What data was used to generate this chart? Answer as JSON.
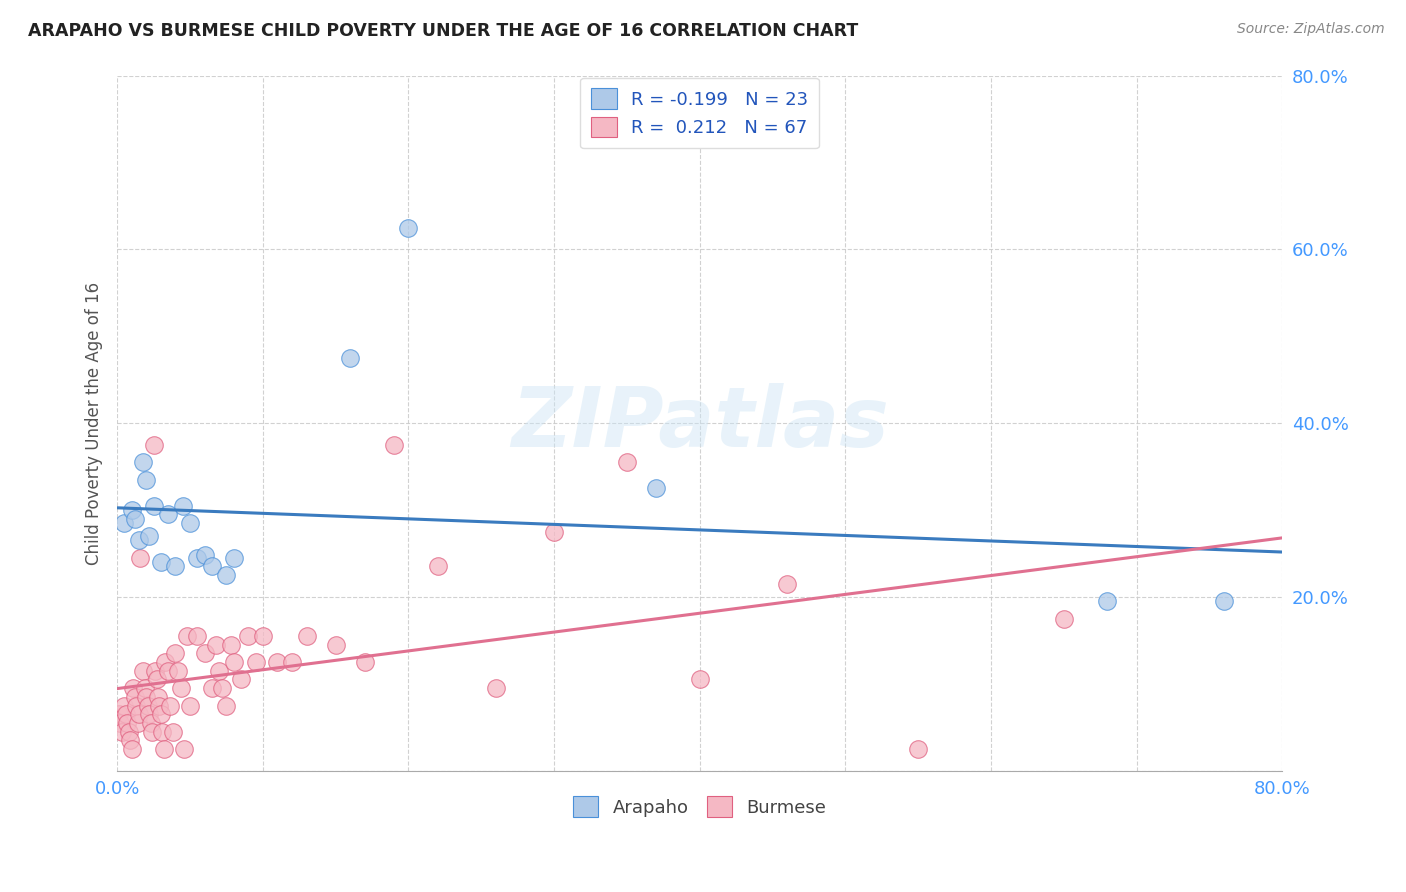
{
  "title": "ARAPAHO VS BURMESE CHILD POVERTY UNDER THE AGE OF 16 CORRELATION CHART",
  "source": "Source: ZipAtlas.com",
  "ylabel": "Child Poverty Under the Age of 16",
  "xlim": [
    0.0,
    0.8
  ],
  "ylim": [
    0.0,
    0.8
  ],
  "legend_r_arapaho": "-0.199",
  "legend_n_arapaho": "23",
  "legend_r_burmese": "0.212",
  "legend_n_burmese": "67",
  "arapaho_scatter_face": "#aec9e8",
  "arapaho_scatter_edge": "#4a90d9",
  "burmese_scatter_face": "#f5b8c4",
  "burmese_scatter_edge": "#e06080",
  "arapaho_line_color": "#3a7bbf",
  "burmese_line_color": "#e07090",
  "tick_color": "#4499ff",
  "watermark": "ZIPatlas",
  "arapaho_x": [
    0.005,
    0.01,
    0.012,
    0.015,
    0.018,
    0.02,
    0.022,
    0.025,
    0.03,
    0.035,
    0.04,
    0.045,
    0.05,
    0.055,
    0.06,
    0.065,
    0.075,
    0.08,
    0.16,
    0.2,
    0.37,
    0.68,
    0.76
  ],
  "arapaho_y": [
    0.285,
    0.3,
    0.29,
    0.265,
    0.355,
    0.335,
    0.27,
    0.305,
    0.24,
    0.295,
    0.235,
    0.305,
    0.285,
    0.245,
    0.248,
    0.235,
    0.225,
    0.245,
    0.475,
    0.625,
    0.325,
    0.195,
    0.195
  ],
  "burmese_x": [
    0.001,
    0.002,
    0.003,
    0.005,
    0.006,
    0.007,
    0.008,
    0.009,
    0.01,
    0.011,
    0.012,
    0.013,
    0.014,
    0.015,
    0.016,
    0.018,
    0.019,
    0.02,
    0.021,
    0.022,
    0.023,
    0.024,
    0.025,
    0.026,
    0.027,
    0.028,
    0.029,
    0.03,
    0.031,
    0.032,
    0.033,
    0.035,
    0.036,
    0.038,
    0.04,
    0.042,
    0.044,
    0.046,
    0.048,
    0.05,
    0.055,
    0.06,
    0.065,
    0.068,
    0.07,
    0.072,
    0.075,
    0.078,
    0.08,
    0.085,
    0.09,
    0.095,
    0.1,
    0.11,
    0.12,
    0.13,
    0.15,
    0.17,
    0.19,
    0.22,
    0.26,
    0.3,
    0.35,
    0.4,
    0.46,
    0.55,
    0.65
  ],
  "burmese_y": [
    0.065,
    0.055,
    0.045,
    0.075,
    0.065,
    0.055,
    0.045,
    0.035,
    0.025,
    0.095,
    0.085,
    0.075,
    0.055,
    0.065,
    0.245,
    0.115,
    0.095,
    0.085,
    0.075,
    0.065,
    0.055,
    0.045,
    0.375,
    0.115,
    0.105,
    0.085,
    0.075,
    0.065,
    0.045,
    0.025,
    0.125,
    0.115,
    0.075,
    0.045,
    0.135,
    0.115,
    0.095,
    0.025,
    0.155,
    0.075,
    0.155,
    0.135,
    0.095,
    0.145,
    0.115,
    0.095,
    0.075,
    0.145,
    0.125,
    0.105,
    0.155,
    0.125,
    0.155,
    0.125,
    0.125,
    0.155,
    0.145,
    0.125,
    0.375,
    0.235,
    0.095,
    0.275,
    0.355,
    0.105,
    0.215,
    0.025,
    0.175
  ]
}
